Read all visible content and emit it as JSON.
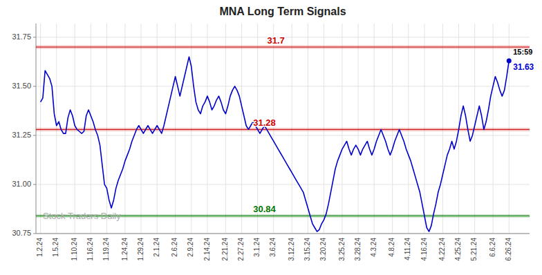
{
  "chart_data": {
    "type": "line",
    "title": "MNA Long Term Signals",
    "color": "#0000cc",
    "grid": true,
    "ylim": [
      30.75,
      31.82
    ],
    "yticks": [
      30.75,
      {
        "value": 31.0,
        "label": "31.00"
      },
      31.25,
      {
        "value": 31.5,
        "label": "31.50"
      },
      31.75
    ],
    "categories": [
      "1.2.24",
      null,
      null,
      null,
      null,
      null,
      null,
      "1.5.24",
      null,
      null,
      null,
      null,
      null,
      null,
      null,
      "1.10.24",
      null,
      null,
      null,
      null,
      null,
      null,
      "1.16.24",
      null,
      null,
      null,
      null,
      null,
      null,
      "1.19.24",
      null,
      null,
      null,
      null,
      null,
      null,
      null,
      "1.24.24",
      null,
      null,
      null,
      null,
      null,
      null,
      "1.29.24",
      null,
      null,
      null,
      null,
      null,
      null,
      "2.1.24",
      null,
      null,
      null,
      null,
      null,
      null,
      null,
      "2.6.24",
      null,
      null,
      null,
      null,
      null,
      null,
      "2.9.24",
      null,
      null,
      null,
      null,
      null,
      null,
      "2.14.24",
      null,
      null,
      null,
      null,
      null,
      null,
      null,
      "2.21.24",
      null,
      null,
      null,
      null,
      null,
      null,
      "2.27.24",
      null,
      null,
      null,
      null,
      null,
      null,
      "3.1.24",
      null,
      null,
      null,
      null,
      null,
      null,
      "3.6.24",
      null,
      null,
      null,
      null,
      null,
      null,
      null,
      "3.12.24",
      null,
      null,
      null,
      null,
      null,
      null,
      "3.15.24",
      null,
      null,
      null,
      null,
      null,
      null,
      "3.20.24",
      null,
      null,
      null,
      null,
      null,
      null,
      null,
      "3.25.24",
      null,
      null,
      null,
      null,
      null,
      null,
      "3.28.24",
      null,
      null,
      null,
      null,
      null,
      null,
      "4.3.24",
      null,
      null,
      null,
      null,
      null,
      null,
      null,
      "4.8.24",
      null,
      null,
      null,
      null,
      null,
      null,
      "4.11.24",
      null,
      null,
      null,
      null,
      null,
      null,
      "4.16.24",
      null,
      null,
      null,
      null,
      null,
      null,
      null,
      "4.22.24",
      null,
      null,
      null,
      null,
      null,
      null,
      "4.25.24",
      null,
      null,
      null,
      null,
      null,
      null,
      "5.21.24",
      null,
      null,
      null,
      null,
      null,
      null,
      null,
      "6.6.24",
      null,
      null,
      null,
      null,
      null,
      null,
      "6.26.24"
    ],
    "values": [
      31.42,
      31.44,
      31.58,
      31.56,
      31.54,
      31.5,
      31.36,
      31.3,
      31.32,
      31.28,
      31.26,
      31.26,
      31.34,
      31.38,
      31.35,
      31.3,
      31.28,
      31.27,
      31.26,
      31.27,
      31.35,
      31.38,
      31.35,
      31.32,
      31.28,
      31.25,
      31.2,
      31.1,
      31.0,
      30.98,
      30.92,
      30.88,
      30.92,
      30.98,
      31.02,
      31.05,
      31.08,
      31.12,
      31.15,
      31.18,
      31.22,
      31.25,
      31.28,
      31.3,
      31.28,
      31.26,
      31.28,
      31.3,
      31.28,
      31.26,
      31.28,
      31.3,
      31.28,
      31.26,
      31.3,
      31.35,
      31.4,
      31.45,
      31.5,
      31.55,
      31.5,
      31.45,
      31.5,
      31.55,
      31.6,
      31.65,
      31.6,
      31.5,
      31.42,
      31.38,
      31.36,
      31.4,
      31.42,
      31.45,
      31.42,
      31.38,
      31.4,
      31.43,
      31.45,
      31.42,
      31.38,
      31.36,
      31.4,
      31.45,
      31.48,
      31.5,
      31.48,
      31.45,
      31.4,
      31.35,
      31.3,
      31.28,
      31.3,
      31.32,
      31.3,
      31.28,
      31.26,
      31.28,
      31.3,
      31.28,
      31.26,
      31.24,
      31.22,
      31.2,
      31.18,
      31.16,
      31.14,
      31.12,
      31.1,
      31.08,
      31.06,
      31.04,
      31.02,
      31.0,
      30.98,
      30.96,
      30.92,
      30.88,
      30.84,
      30.8,
      30.78,
      30.76,
      30.77,
      30.8,
      30.82,
      30.85,
      30.9,
      30.96,
      31.02,
      31.08,
      31.12,
      31.15,
      31.18,
      31.2,
      31.22,
      31.18,
      31.15,
      31.18,
      31.2,
      31.18,
      31.15,
      31.18,
      31.2,
      31.22,
      31.18,
      31.15,
      31.18,
      31.22,
      31.25,
      31.28,
      31.25,
      31.22,
      31.18,
      31.15,
      31.18,
      31.22,
      31.25,
      31.28,
      31.25,
      31.22,
      31.18,
      31.15,
      31.12,
      31.08,
      31.04,
      31.0,
      30.96,
      30.9,
      30.84,
      30.78,
      30.76,
      30.79,
      30.85,
      30.9,
      30.96,
      31.0,
      31.05,
      31.1,
      31.15,
      31.18,
      31.22,
      31.18,
      31.22,
      31.28,
      31.35,
      31.4,
      31.35,
      31.28,
      31.22,
      31.25,
      31.3,
      31.35,
      31.4,
      31.35,
      31.28,
      31.32,
      31.38,
      31.45,
      31.5,
      31.55,
      31.52,
      31.48,
      31.45,
      31.48,
      31.55,
      31.63
    ],
    "reference_lines": [
      {
        "value": 31.7,
        "label": "31.7",
        "color": "#cc0000"
      },
      {
        "value": 31.28,
        "label": "31.28",
        "color": "#cc0000"
      },
      {
        "value": 30.84,
        "label": "30.84",
        "color": "#007700"
      }
    ],
    "annotations": [
      {
        "text": "15:59"
      },
      {
        "text": "31.63",
        "value": 31.63
      }
    ],
    "watermark": "Stock Traders Daily"
  }
}
